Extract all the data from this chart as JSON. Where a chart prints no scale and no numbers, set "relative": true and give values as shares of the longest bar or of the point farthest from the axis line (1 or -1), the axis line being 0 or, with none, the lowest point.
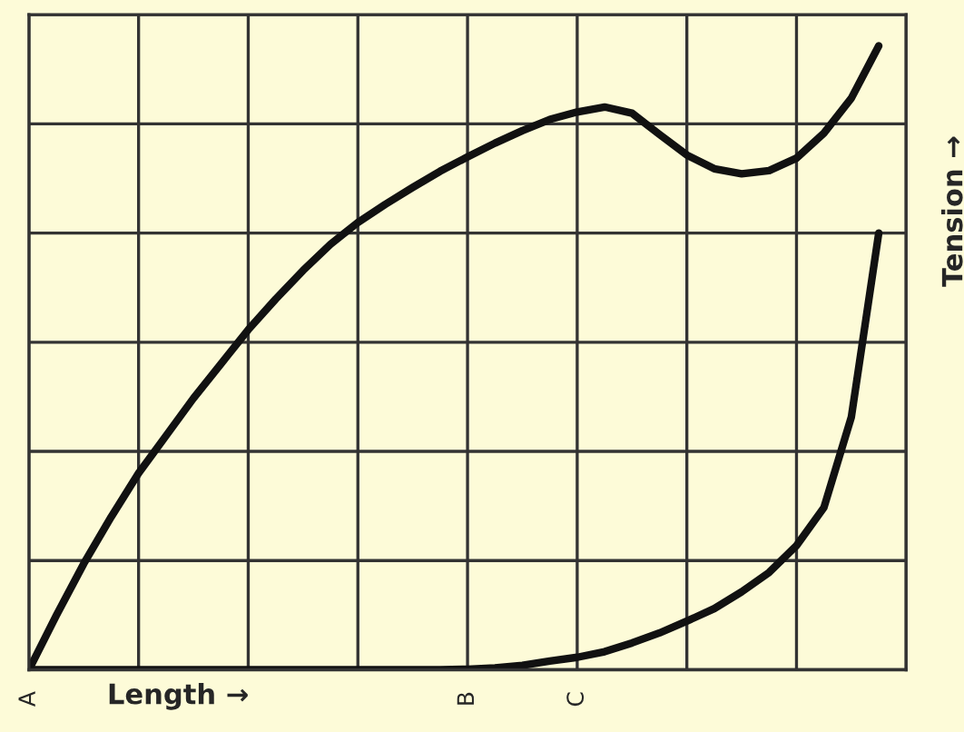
{
  "chart_data": {
    "type": "line",
    "relative": true,
    "xlabel": "Length →",
    "ylabel": "Tension →",
    "categories": [
      "A",
      null,
      null,
      null,
      null,
      null,
      null,
      null,
      null,
      null,
      null,
      null,
      null,
      null,
      null,
      null,
      "B",
      null,
      null,
      null,
      "C",
      null,
      null,
      null,
      null,
      null,
      null,
      null,
      null,
      null,
      null,
      null,
      null
    ],
    "grid": true,
    "marker": "none",
    "line_style": "solid",
    "series": [
      {
        "color": "#111111",
        "values": [
          0,
          0.087,
          0.17,
          0.245,
          0.315,
          0.375,
          0.435,
          0.49,
          0.545,
          0.594,
          0.64,
          0.682,
          0.717,
          0.746,
          0.773,
          0.799,
          0.822,
          0.844,
          0.864,
          0.882,
          0.894,
          0.902,
          0.892,
          0.858,
          0.825,
          0.803,
          0.795,
          0.8,
          0.82,
          0.86,
          0.916,
          1,
          null
        ]
      },
      {
        "color": "#111111",
        "values": [
          0,
          0,
          0,
          0,
          0,
          0,
          0,
          0,
          0,
          0,
          0,
          0,
          0,
          0,
          0,
          0,
          0.001,
          0.003,
          0.007,
          0.014,
          0.02,
          0.029,
          0.043,
          0.059,
          0.078,
          0.098,
          0.125,
          0.156,
          0.199,
          0.26,
          0.405,
          0.7,
          null
        ]
      }
    ]
  }
}
